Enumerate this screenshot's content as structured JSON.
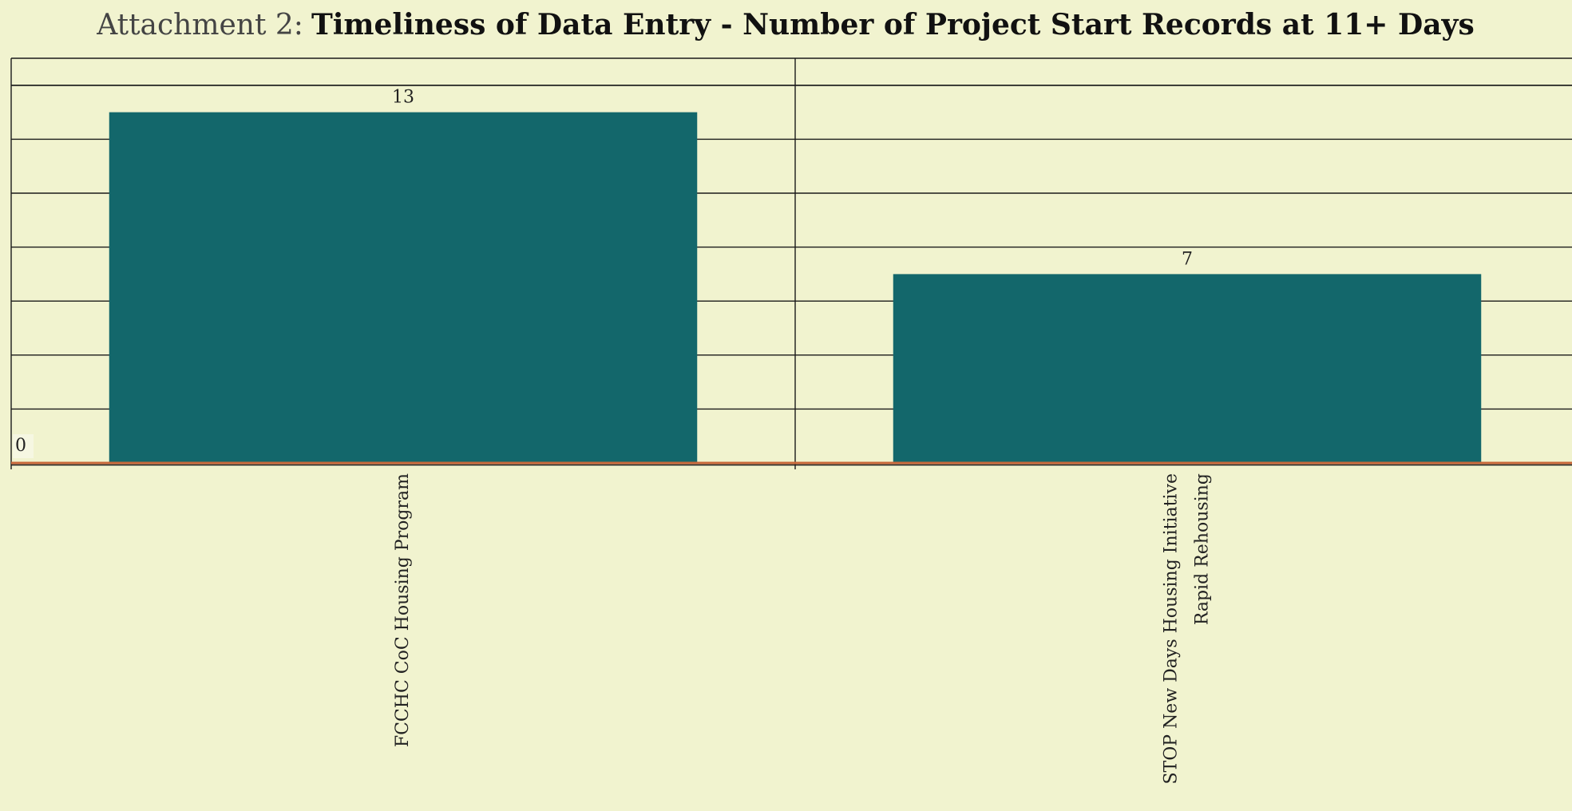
{
  "chart_data": {
    "type": "bar",
    "title_prefix": "Attachment 2:",
    "title": "Timeliness of Data Entry - Number of Project Start Records at 11+ Days",
    "categories": [
      "FCCHC CoC Housing Program",
      "STOP New Days Housing Initiative\nRapid Rehousing"
    ],
    "values": [
      13,
      7
    ],
    "color": "#13676b",
    "ylim": [
      0,
      15
    ],
    "yticks": [
      0
    ],
    "ygrid": [
      0,
      2,
      4,
      6,
      8,
      10,
      12,
      14
    ],
    "grid": true
  }
}
